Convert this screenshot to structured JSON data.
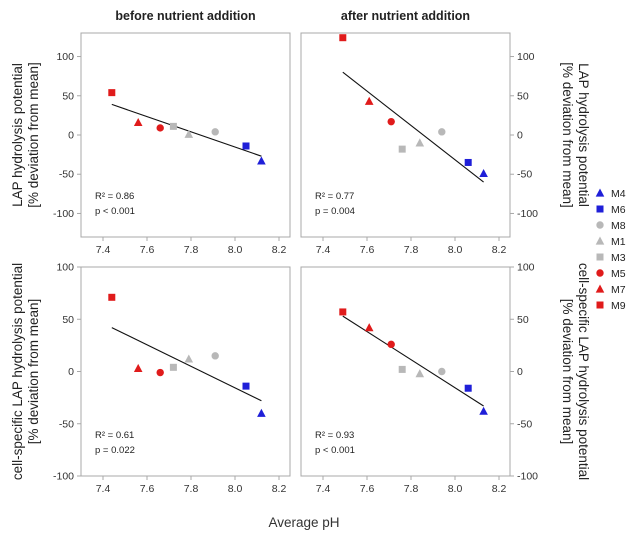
{
  "chart_data": [
    {
      "type": "scatter",
      "panel": "top-left",
      "title": "before nutrient addition",
      "ylabel": [
        "LAP hydrolysis potential",
        "[% deviation from mean]"
      ],
      "xlabel": "",
      "xlim": [
        7.3,
        8.25
      ],
      "ylim": [
        -130,
        130
      ],
      "xticks": [
        "7.4",
        "7.6",
        "7.8",
        "8.0",
        "8.2"
      ],
      "yticks": [
        "100",
        "50",
        "0",
        "-50",
        "-100"
      ],
      "points": [
        {
          "series": "M9",
          "x": 7.44,
          "y": 54
        },
        {
          "series": "M7",
          "x": 7.56,
          "y": 16
        },
        {
          "series": "M5",
          "x": 7.66,
          "y": 9
        },
        {
          "series": "M3",
          "x": 7.72,
          "y": 11
        },
        {
          "series": "M1",
          "x": 7.79,
          "y": 1
        },
        {
          "series": "M8",
          "x": 7.91,
          "y": 4
        },
        {
          "series": "M6",
          "x": 8.05,
          "y": -14
        },
        {
          "series": "M4",
          "x": 8.12,
          "y": -33
        }
      ],
      "fit": {
        "x": [
          7.44,
          8.12
        ],
        "y": [
          39,
          -27
        ]
      },
      "stats": [
        "R² = 0.86",
        "p < 0.001"
      ]
    },
    {
      "type": "scatter",
      "panel": "top-right",
      "title": "after nutrient addition",
      "ylabel": [
        "LAP hydrolysis potential",
        "[% deviation from mean]"
      ],
      "xlabel": "",
      "xlim": [
        7.3,
        8.25
      ],
      "ylim": [
        -130,
        130
      ],
      "xticks": [
        "7.4",
        "7.6",
        "7.8",
        "8.0",
        "8.2"
      ],
      "yticks": [
        "100",
        "50",
        "0",
        "-50",
        "-100"
      ],
      "points": [
        {
          "series": "M9",
          "x": 7.49,
          "y": 124
        },
        {
          "series": "M7",
          "x": 7.61,
          "y": 43
        },
        {
          "series": "M5",
          "x": 7.71,
          "y": 17
        },
        {
          "series": "M3",
          "x": 7.76,
          "y": -18
        },
        {
          "series": "M1",
          "x": 7.84,
          "y": -10
        },
        {
          "series": "M8",
          "x": 7.94,
          "y": 4
        },
        {
          "series": "M6",
          "x": 8.06,
          "y": -35
        },
        {
          "series": "M4",
          "x": 8.13,
          "y": -49
        }
      ],
      "fit": {
        "x": [
          7.49,
          8.13
        ],
        "y": [
          80,
          -60
        ]
      },
      "stats": [
        "R² = 0.77",
        "p = 0.004"
      ]
    },
    {
      "type": "scatter",
      "panel": "bottom-left",
      "title": "",
      "ylabel": [
        "cell-specific LAP hydrolysis potential",
        "[% deviation from mean]"
      ],
      "xlabel": "",
      "xlim": [
        7.3,
        8.25
      ],
      "ylim": [
        -100,
        100
      ],
      "xticks": [
        "7.4",
        "7.6",
        "7.8",
        "8.0",
        "8.2"
      ],
      "yticks": [
        "100",
        "50",
        "0",
        "-50",
        "-100"
      ],
      "points": [
        {
          "series": "M9",
          "x": 7.44,
          "y": 71
        },
        {
          "series": "M7",
          "x": 7.56,
          "y": 3
        },
        {
          "series": "M5",
          "x": 7.66,
          "y": -1
        },
        {
          "series": "M3",
          "x": 7.72,
          "y": 4
        },
        {
          "series": "M1",
          "x": 7.79,
          "y": 12
        },
        {
          "series": "M8",
          "x": 7.91,
          "y": 15
        },
        {
          "series": "M6",
          "x": 8.05,
          "y": -14
        },
        {
          "series": "M4",
          "x": 8.12,
          "y": -40
        }
      ],
      "fit": {
        "x": [
          7.44,
          8.12
        ],
        "y": [
          42,
          -28
        ]
      },
      "stats": [
        "R² = 0.61",
        "p = 0.022"
      ]
    },
    {
      "type": "scatter",
      "panel": "bottom-right",
      "title": "",
      "ylabel": [
        "cell-specific LAP hydrolysis potential",
        "[% deviation from mean]"
      ],
      "xlabel": "",
      "xlim": [
        7.3,
        8.25
      ],
      "ylim": [
        -100,
        100
      ],
      "xticks": [
        "7.4",
        "7.6",
        "7.8",
        "8.0",
        "8.2"
      ],
      "yticks": [
        "100",
        "50",
        "0",
        "-50",
        "-100"
      ],
      "points": [
        {
          "series": "M9",
          "x": 7.49,
          "y": 57
        },
        {
          "series": "M7",
          "x": 7.61,
          "y": 42
        },
        {
          "series": "M5",
          "x": 7.71,
          "y": 26
        },
        {
          "series": "M3",
          "x": 7.76,
          "y": 2
        },
        {
          "series": "M1",
          "x": 7.84,
          "y": -2
        },
        {
          "series": "M8",
          "x": 7.94,
          "y": 0
        },
        {
          "series": "M6",
          "x": 8.06,
          "y": -16
        },
        {
          "series": "M4",
          "x": 8.13,
          "y": -38
        }
      ],
      "fit": {
        "x": [
          7.49,
          8.13
        ],
        "y": [
          53,
          -33
        ]
      },
      "stats": [
        "R² = 0.93",
        "p < 0.001"
      ]
    }
  ],
  "shared_xlabel": "Average pH",
  "legend": [
    {
      "name": "M4",
      "marker": "triangle",
      "color": "#1f1fd8"
    },
    {
      "name": "M6",
      "marker": "square",
      "color": "#1f1fd8"
    },
    {
      "name": "M8",
      "marker": "circle",
      "color": "#b8b8b8"
    },
    {
      "name": "M1",
      "marker": "triangle",
      "color": "#b8b8b8"
    },
    {
      "name": "M3",
      "marker": "square",
      "color": "#b8b8b8"
    },
    {
      "name": "M5",
      "marker": "circle",
      "color": "#e01b1b"
    },
    {
      "name": "M7",
      "marker": "triangle",
      "color": "#e01b1b"
    },
    {
      "name": "M9",
      "marker": "square",
      "color": "#e01b1b"
    }
  ]
}
